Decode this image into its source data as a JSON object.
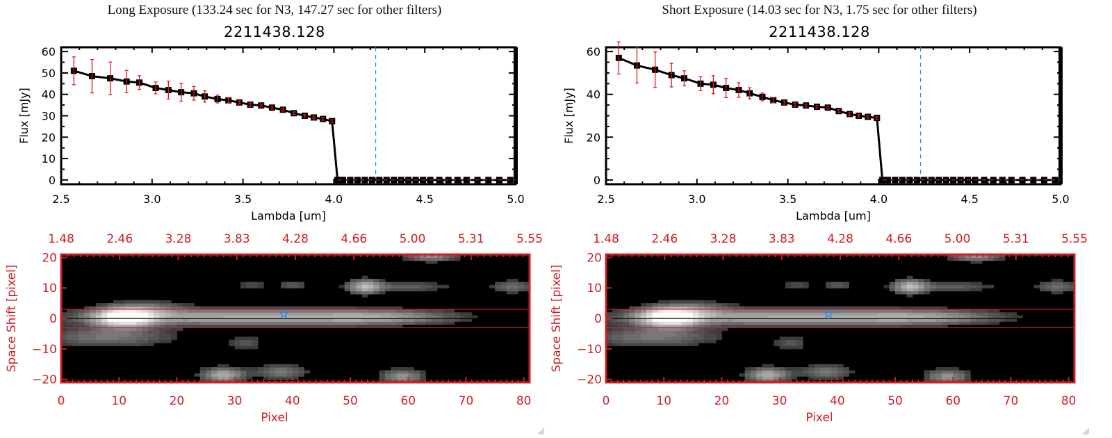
{
  "panels": [
    {
      "id": "long",
      "exposure_title": "Long Exposure (133.24 sec for N3, 147.27 sec for other filters)",
      "object_title": "2211438.128"
    },
    {
      "id": "short",
      "exposure_title": "Short Exposure (14.03 sec for N3, 1.75 sec for other filters)",
      "object_title": "2211438.128"
    }
  ],
  "colors": {
    "spectrum_line": "#000000",
    "error_bar": "#e0141e",
    "axis_image": "#cc1f24",
    "marker_line": "#2b8ad8",
    "zero_line": "#e0141e"
  },
  "chart_data": [
    {
      "type": "line",
      "panel": "long",
      "title": "2211438.128",
      "xlabel": "Lambda [um]",
      "ylabel": "Flux [mJy]",
      "xlim": [
        2.5,
        5.0
      ],
      "ylim": [
        -2,
        62
      ],
      "xticks": [
        "2.5",
        "3.0",
        "3.5",
        "4.0",
        "4.5",
        "5.0"
      ],
      "xtick_values": [
        2.5,
        3.0,
        3.5,
        4.0,
        4.5,
        5.0
      ],
      "yticks": [
        "0",
        "10",
        "20",
        "30",
        "40",
        "50",
        "60"
      ],
      "ytick_values": [
        0,
        10,
        20,
        30,
        40,
        50,
        60
      ],
      "vline_x": 4.23,
      "hline_y": 0,
      "series": [
        {
          "name": "flux",
          "x": [
            2.57,
            2.67,
            2.77,
            2.86,
            2.93,
            3.02,
            3.09,
            3.16,
            3.23,
            3.29,
            3.36,
            3.42,
            3.48,
            3.54,
            3.6,
            3.66,
            3.72,
            3.78,
            3.84,
            3.89,
            3.94,
            3.99,
            4.02,
            4.05,
            4.09,
            4.13,
            4.17,
            4.21,
            4.25,
            4.29,
            4.33,
            4.37,
            4.41,
            4.45,
            4.49,
            4.53,
            4.58,
            4.63,
            4.68,
            4.73,
            4.79,
            4.85,
            4.91,
            4.97
          ],
          "y": [
            51,
            48.5,
            47.5,
            46,
            45.5,
            43,
            42,
            41,
            40.5,
            39,
            37.8,
            37.2,
            36.2,
            35.2,
            34.8,
            33.8,
            32.8,
            31.2,
            30,
            29.2,
            28.5,
            27.5,
            0,
            0,
            0,
            0,
            0,
            0,
            0,
            0,
            0,
            0,
            0,
            0,
            0,
            0,
            0,
            0,
            0,
            0,
            0,
            0,
            0,
            0
          ],
          "err": [
            6.5,
            7.8,
            7.6,
            5.2,
            3.2,
            2.8,
            4.2,
            4.2,
            3.2,
            2.6,
            1.8,
            1.2,
            0.8,
            0.8,
            0.6,
            0.6,
            0.6,
            0.6,
            0.6,
            0.6,
            0.6,
            0.6,
            0,
            0,
            0,
            0,
            0,
            0,
            0,
            0,
            0,
            0,
            0,
            0,
            0,
            0,
            0,
            0,
            0,
            0,
            0,
            0,
            0,
            0
          ]
        }
      ]
    },
    {
      "type": "line",
      "panel": "short",
      "title": "2211438.128",
      "xlabel": "Lambda [um]",
      "ylabel": "Flux [mJy]",
      "xlim": [
        2.5,
        5.0
      ],
      "ylim": [
        -2,
        62
      ],
      "xticks": [
        "2.5",
        "3.0",
        "3.5",
        "4.0",
        "4.5",
        "5.0"
      ],
      "xtick_values": [
        2.5,
        3.0,
        3.5,
        4.0,
        4.5,
        5.0
      ],
      "yticks": [
        "0",
        "20",
        "40",
        "60"
      ],
      "ytick_values": [
        0,
        20,
        40,
        60
      ],
      "vline_x": 4.23,
      "hline_y": 0,
      "series": [
        {
          "name": "flux",
          "x": [
            2.57,
            2.67,
            2.77,
            2.86,
            2.93,
            3.02,
            3.09,
            3.16,
            3.23,
            3.29,
            3.36,
            3.42,
            3.48,
            3.54,
            3.6,
            3.66,
            3.72,
            3.78,
            3.84,
            3.89,
            3.94,
            3.99,
            4.02,
            4.05,
            4.09,
            4.13,
            4.17,
            4.21,
            4.25,
            4.29,
            4.33,
            4.37,
            4.41,
            4.45,
            4.49,
            4.53,
            4.58,
            4.63,
            4.68,
            4.73,
            4.79,
            4.85,
            4.91,
            4.97
          ],
          "y": [
            57,
            53.5,
            51.5,
            49,
            47.5,
            45,
            44.5,
            43,
            42,
            40.5,
            38.8,
            37.3,
            36.2,
            35.2,
            34.8,
            34.2,
            33.8,
            32.2,
            30.8,
            30,
            29.5,
            29,
            0,
            0,
            0,
            0,
            0,
            0,
            0,
            0,
            0,
            0,
            0,
            0,
            0,
            0,
            0,
            0,
            0,
            0,
            0,
            0,
            0,
            0
          ],
          "err": [
            7.5,
            8.2,
            8.3,
            5.5,
            3.5,
            3.2,
            4.2,
            4.5,
            3.4,
            2.6,
            1.8,
            1.2,
            0.8,
            0.8,
            0.6,
            0.6,
            0.6,
            0.6,
            0.6,
            0.6,
            0.6,
            0.6,
            0,
            0,
            0,
            0,
            0,
            0,
            0,
            0,
            0,
            0,
            0,
            0,
            0,
            0,
            0,
            0,
            0,
            0,
            0,
            0,
            0,
            0
          ]
        }
      ]
    },
    {
      "type": "heatmap",
      "panel": "long",
      "xlabel": "Pixel",
      "ylabel": "Space Shift [pixel]",
      "xlim": [
        0,
        81
      ],
      "ylim": [
        -21,
        21
      ],
      "xticks": [
        "0",
        "10",
        "20",
        "30",
        "40",
        "50",
        "60",
        "70",
        "80"
      ],
      "xtick_values": [
        0,
        10,
        20,
        30,
        40,
        50,
        60,
        70,
        80
      ],
      "yticks": [
        "-20",
        "-10",
        "0",
        "10",
        "20"
      ],
      "ytick_values": [
        -20,
        -10,
        0,
        10,
        20
      ],
      "top_axis_ticks": [
        "1.48",
        "2.46",
        "3.28",
        "3.83",
        "4.28",
        "4.66",
        "5.00",
        "5.31",
        "5.55"
      ],
      "aperture_lines": [
        3,
        -3
      ],
      "center_line": 0,
      "star_marker": {
        "x": 38.5,
        "y": 1.5
      },
      "sources": [
        {
          "x": 11,
          "y": 0.5,
          "sx": 3.5,
          "sy": 2.2,
          "amp": 1.0
        },
        {
          "x": 30,
          "y": 0.5,
          "sx": 18,
          "sy": 1.8,
          "amp": 0.55
        },
        {
          "x": 55,
          "y": 0.5,
          "sx": 9,
          "sy": 1.6,
          "amp": 0.35
        },
        {
          "x": 8,
          "y": -6,
          "sx": 8,
          "sy": 2.2,
          "amp": 0.3
        },
        {
          "x": 16,
          "y": 3.5,
          "sx": 4,
          "sy": 1.6,
          "amp": 0.22
        },
        {
          "x": 52.5,
          "y": 10.5,
          "sx": 2,
          "sy": 1.6,
          "amp": 0.55
        },
        {
          "x": 60,
          "y": 10.5,
          "sx": 5,
          "sy": 1.2,
          "amp": 0.22
        },
        {
          "x": 78,
          "y": 10.5,
          "sx": 2.5,
          "sy": 1.4,
          "amp": 0.28
        },
        {
          "x": 28,
          "y": -18.5,
          "sx": 2.5,
          "sy": 1.6,
          "amp": 0.55
        },
        {
          "x": 38,
          "y": -17.5,
          "sx": 3,
          "sy": 1.6,
          "amp": 0.32
        },
        {
          "x": 59,
          "y": -19,
          "sx": 2.5,
          "sy": 1.6,
          "amp": 0.42
        },
        {
          "x": 64,
          "y": 20.5,
          "sx": 3,
          "sy": 1.2,
          "amp": 0.4
        },
        {
          "x": 33,
          "y": 11,
          "sx": 1.5,
          "sy": 1.2,
          "amp": 0.18
        },
        {
          "x": 40,
          "y": 11,
          "sx": 2,
          "sy": 1.2,
          "amp": 0.2
        },
        {
          "x": 32,
          "y": -8,
          "sx": 2,
          "sy": 1.5,
          "amp": 0.2
        }
      ]
    },
    {
      "type": "heatmap",
      "panel": "short",
      "xlabel": "Pixel",
      "ylabel": "Space Shift [pixel]",
      "xlim": [
        0,
        81
      ],
      "ylim": [
        -21,
        21
      ],
      "xticks": [
        "0",
        "10",
        "20",
        "30",
        "40",
        "50",
        "60",
        "70",
        "80"
      ],
      "xtick_values": [
        0,
        10,
        20,
        30,
        40,
        50,
        60,
        70,
        80
      ],
      "yticks": [
        "-20",
        "-10",
        "0",
        "10",
        "20"
      ],
      "ytick_values": [
        -20,
        -10,
        0,
        10,
        20
      ],
      "top_axis_ticks": [
        "1.48",
        "2.46",
        "3.28",
        "3.83",
        "4.28",
        "4.66",
        "5.00",
        "5.31",
        "5.55"
      ],
      "aperture_lines": [
        3,
        -3
      ],
      "center_line": 0,
      "star_marker": {
        "x": 38.5,
        "y": 1.5
      },
      "sources": [
        {
          "x": 11,
          "y": 0.5,
          "sx": 3.5,
          "sy": 2.2,
          "amp": 1.0
        },
        {
          "x": 30,
          "y": 0.5,
          "sx": 18,
          "sy": 1.8,
          "amp": 0.55
        },
        {
          "x": 55,
          "y": 0.5,
          "sx": 9,
          "sy": 1.6,
          "amp": 0.35
        },
        {
          "x": 8,
          "y": -6,
          "sx": 8,
          "sy": 2.2,
          "amp": 0.3
        },
        {
          "x": 16,
          "y": 3.5,
          "sx": 4,
          "sy": 1.6,
          "amp": 0.22
        },
        {
          "x": 52.5,
          "y": 10.5,
          "sx": 2,
          "sy": 1.6,
          "amp": 0.55
        },
        {
          "x": 60,
          "y": 10.5,
          "sx": 5,
          "sy": 1.2,
          "amp": 0.22
        },
        {
          "x": 78,
          "y": 10.5,
          "sx": 2.5,
          "sy": 1.4,
          "amp": 0.28
        },
        {
          "x": 28,
          "y": -18.5,
          "sx": 2.5,
          "sy": 1.6,
          "amp": 0.55
        },
        {
          "x": 38,
          "y": -17.5,
          "sx": 3,
          "sy": 1.6,
          "amp": 0.32
        },
        {
          "x": 59,
          "y": -19,
          "sx": 2.5,
          "sy": 1.6,
          "amp": 0.42
        },
        {
          "x": 64,
          "y": 20.5,
          "sx": 3,
          "sy": 1.2,
          "amp": 0.4
        },
        {
          "x": 33,
          "y": 11,
          "sx": 1.5,
          "sy": 1.2,
          "amp": 0.18
        },
        {
          "x": 40,
          "y": 11,
          "sx": 2,
          "sy": 1.2,
          "amp": 0.2
        },
        {
          "x": 32,
          "y": -8,
          "sx": 2,
          "sy": 1.5,
          "amp": 0.2
        }
      ]
    }
  ]
}
